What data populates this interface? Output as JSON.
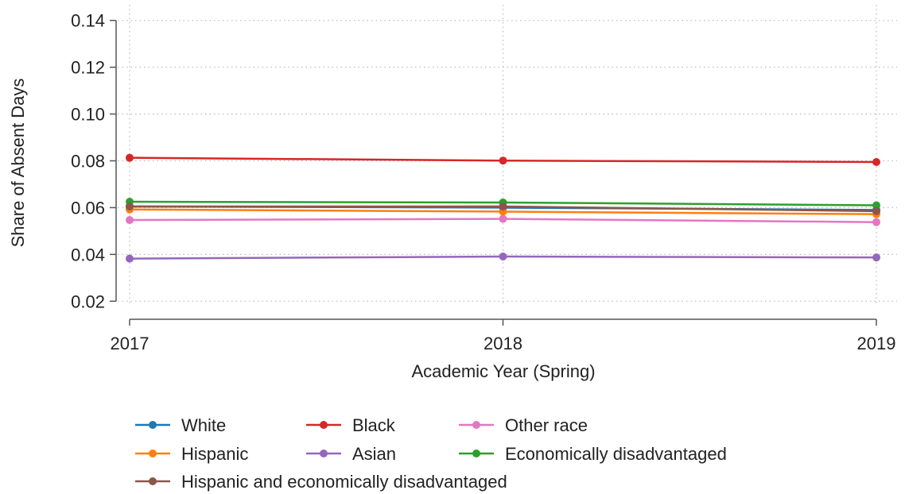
{
  "chart_data": {
    "type": "line",
    "title": "",
    "xlabel": "Academic Year (Spring)",
    "ylabel": "Share of Absent Days",
    "x": [
      2017,
      2018,
      2019
    ],
    "x_tick_labels": [
      "2017",
      "2018",
      "2019"
    ],
    "ylim": [
      0.015,
      0.145
    ],
    "y_ticks": [
      0.02,
      0.04,
      0.06,
      0.08,
      0.1,
      0.12,
      0.14
    ],
    "y_tick_labels": [
      "0.02",
      "0.04",
      "0.06",
      "0.08",
      "0.10",
      "0.12",
      "0.14"
    ],
    "grid": "dotted, both axes",
    "legend_position": "bottom",
    "series": [
      {
        "name": "White",
        "color": "#1f77b4",
        "values": [
          0.0605,
          0.06,
          0.059
        ]
      },
      {
        "name": "Black",
        "color": "#d62728",
        "values": [
          0.0813,
          0.0801,
          0.0795
        ]
      },
      {
        "name": "Other race",
        "color": "#e377c2",
        "values": [
          0.0547,
          0.0552,
          0.0538
        ]
      },
      {
        "name": "Hispanic",
        "color": "#ff7f0e",
        "values": [
          0.0592,
          0.0583,
          0.0572
        ]
      },
      {
        "name": "Asian",
        "color": "#9467bd",
        "values": [
          0.0382,
          0.0391,
          0.0387
        ]
      },
      {
        "name": "Economically disadvantaged",
        "color": "#2ca02c",
        "values": [
          0.0625,
          0.0622,
          0.061
        ]
      },
      {
        "name": "Hispanic and economically disadvantaged",
        "color": "#8c564b",
        "values": [
          0.0605,
          0.0605,
          0.0585
        ]
      }
    ]
  }
}
